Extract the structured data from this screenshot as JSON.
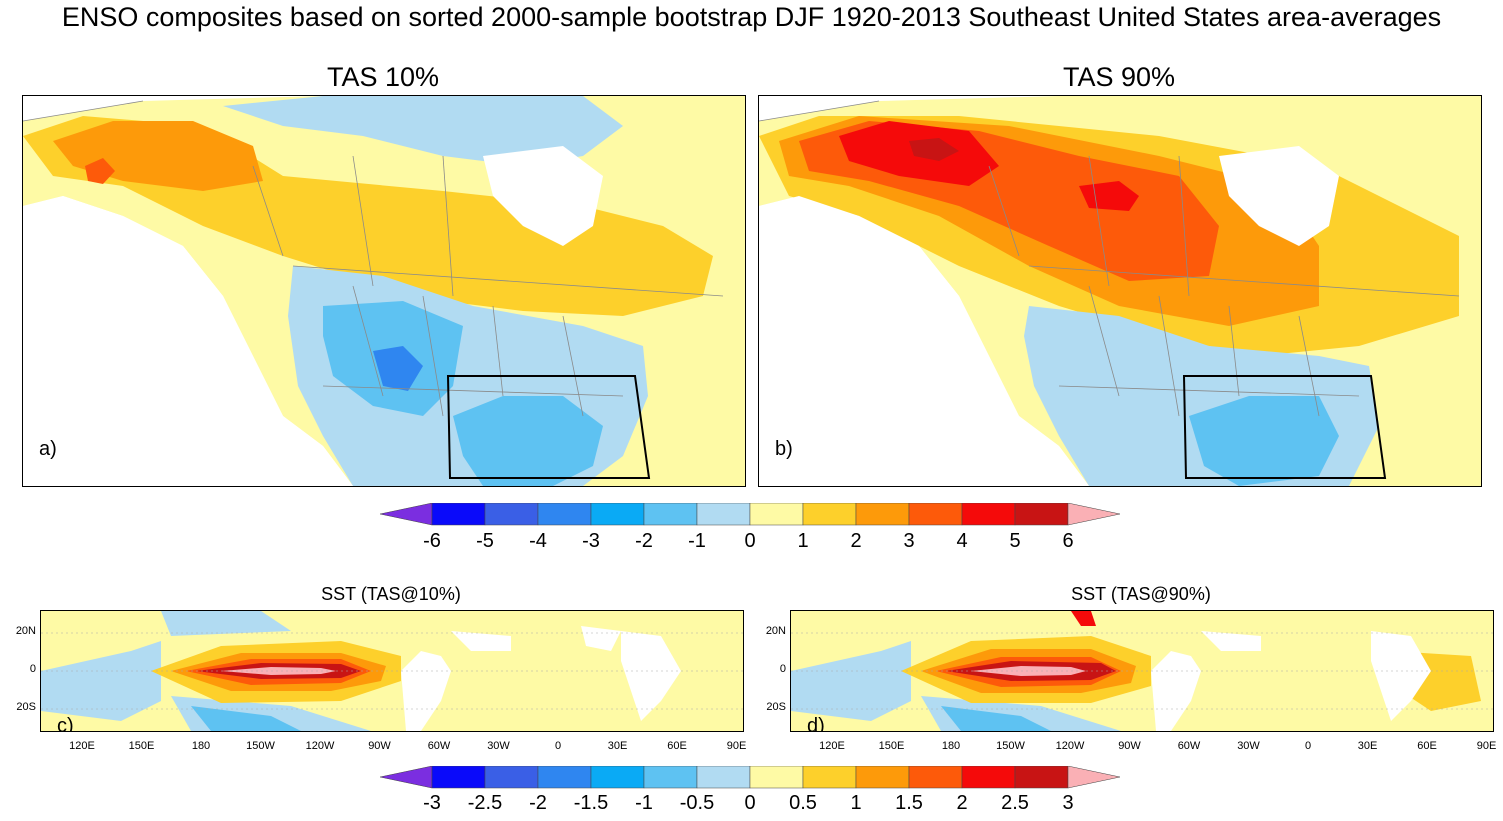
{
  "title": "ENSO composites based on sorted 2000-sample bootstrap DJF 1920-2013 Southeast United States area-averages",
  "panels": {
    "a": {
      "title": "TAS 10%",
      "label": "a)"
    },
    "b": {
      "title": "TAS 90%",
      "label": "b)"
    },
    "c": {
      "title": "SST (TAS@10%)",
      "label": "c)"
    },
    "d": {
      "title": "SST (TAS@90%)",
      "label": "d)"
    }
  },
  "colors": {
    "palette": [
      "#7b2ee0",
      "#0a0afa",
      "#3a5fe6",
      "#2f86f0",
      "#0aaaf5",
      "#5ec2f2",
      "#b1dbf2",
      "#fefaa5",
      "#fdd02b",
      "#fd9a0a",
      "#fd5a0a",
      "#f50a0a",
      "#c81414",
      "#fab0b5"
    ],
    "frame": "#000000",
    "boundary": "#8a8a8a"
  },
  "chart_data": [
    {
      "type": "heatmap",
      "id": "a",
      "title": "TAS 10%",
      "region_box": "Southeast United States",
      "description_levels": [
        -6,
        -5,
        -4,
        -3,
        -2,
        -1,
        0,
        1,
        2,
        3,
        4,
        5,
        6
      ],
      "approx_anomaly": {
        "Alaska": 3,
        "Northern Canada/Great Plains": 2,
        "Western/Southern US": -2,
        "Gulf Coast": -2,
        "Hudson Bay": 0
      }
    },
    {
      "type": "heatmap",
      "id": "b",
      "title": "TAS 90%",
      "region_box": "Southeast United States",
      "description_levels": [
        -6,
        -5,
        -4,
        -3,
        -2,
        -1,
        0,
        1,
        2,
        3,
        4,
        5,
        6
      ],
      "approx_anomaly": {
        "Alaska/Yukon": 5,
        "Central Canada": 4,
        "Northern US": 2,
        "Southern US": -1,
        "Gulf Coast": -2
      }
    },
    {
      "type": "heatmap",
      "id": "c",
      "title": "SST (TAS@10%)",
      "levels": [
        -3,
        -2.5,
        -2,
        -1.5,
        -1,
        -0.5,
        0,
        0.5,
        1,
        1.5,
        2,
        2.5,
        3
      ],
      "x_ticks": [
        "120E",
        "150E",
        "180",
        "150W",
        "120W",
        "90W",
        "60W",
        "30W",
        "0",
        "30E",
        "60E",
        "90E"
      ],
      "y_ticks": [
        "20N",
        "0",
        "20S"
      ],
      "approx_anomaly": {
        "Central/Eastern Equatorial Pacific": 3,
        "West Pacific": -1,
        "Indian Ocean": 0.5,
        "Atlantic": 0.5
      }
    },
    {
      "type": "heatmap",
      "id": "d",
      "title": "SST (TAS@90%)",
      "levels": [
        -3,
        -2.5,
        -2,
        -1.5,
        -1,
        -0.5,
        0,
        0.5,
        1,
        1.5,
        2,
        2.5,
        3
      ],
      "x_ticks": [
        "120E",
        "150E",
        "180",
        "150W",
        "120W",
        "90W",
        "60W",
        "30W",
        "0",
        "30E",
        "60E",
        "90E"
      ],
      "y_ticks": [
        "20N",
        "0",
        "20S"
      ],
      "approx_anomaly": {
        "Central/Eastern Equatorial Pacific": 3,
        "West Pacific": -1,
        "Indian Ocean": 1,
        "Atlantic": 0.5
      }
    }
  ],
  "colorbar_top": {
    "labels": [
      "-6",
      "-5",
      "-4",
      "-3",
      "-2",
      "-1",
      "0",
      "1",
      "2",
      "3",
      "4",
      "5",
      "6"
    ]
  },
  "colorbar_bottom": {
    "labels": [
      "-3",
      "-2.5",
      "-2",
      "-1.5",
      "-1",
      "-0.5",
      "0",
      "0.5",
      "1",
      "1.5",
      "2",
      "2.5",
      "3"
    ]
  }
}
